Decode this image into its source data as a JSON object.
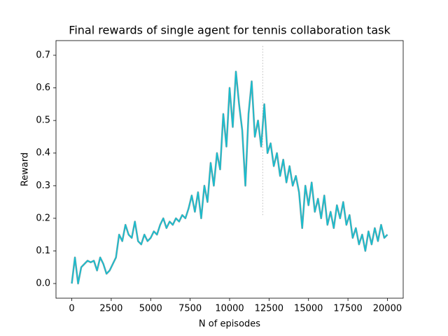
{
  "chart_data": {
    "type": "line",
    "title": "Final rewards of single agent for tennis collaboration task",
    "x_label": "N of episodes",
    "y_label": "Reward",
    "x": [
      0,
      200,
      400,
      600,
      800,
      1000,
      1200,
      1400,
      1600,
      1800,
      2000,
      2200,
      2400,
      2600,
      2800,
      3000,
      3200,
      3400,
      3600,
      3800,
      4000,
      4200,
      4400,
      4600,
      4800,
      5000,
      5200,
      5400,
      5600,
      5800,
      6000,
      6200,
      6400,
      6600,
      6800,
      7000,
      7200,
      7400,
      7600,
      7800,
      8000,
      8200,
      8400,
      8600,
      8800,
      9000,
      9200,
      9400,
      9600,
      9800,
      10000,
      10200,
      10400,
      10600,
      10800,
      11000,
      11200,
      11400,
      11600,
      11800,
      12000,
      12200,
      12400,
      12600,
      12800,
      13000,
      13200,
      13400,
      13600,
      13800,
      14000,
      14200,
      14400,
      14600,
      14800,
      15000,
      15200,
      15400,
      15600,
      15800,
      16000,
      16200,
      16400,
      16600,
      16800,
      17000,
      17200,
      17400,
      17600,
      17800,
      18000,
      18200,
      18400,
      18600,
      18800,
      19000,
      19200,
      19400,
      19600,
      19800,
      20000
    ],
    "series": [
      {
        "color": "#17becf",
        "values": [
          0.0,
          0.08,
          0.0,
          0.05,
          0.06,
          0.07,
          0.065,
          0.07,
          0.04,
          0.08,
          0.06,
          0.03,
          0.04,
          0.06,
          0.08,
          0.15,
          0.13,
          0.18,
          0.15,
          0.14,
          0.19,
          0.13,
          0.12,
          0.15,
          0.13,
          0.14,
          0.16,
          0.15,
          0.18,
          0.2,
          0.17,
          0.19,
          0.18,
          0.2,
          0.19,
          0.21,
          0.2,
          0.23,
          0.27,
          0.22,
          0.28,
          0.2,
          0.3,
          0.25,
          0.37,
          0.3,
          0.4,
          0.35,
          0.52,
          0.42,
          0.6,
          0.48,
          0.65,
          0.55,
          0.47,
          0.3,
          0.52,
          0.62,
          0.45,
          0.5,
          0.42,
          0.55,
          0.4,
          0.43,
          0.36,
          0.4,
          0.33,
          0.38,
          0.31,
          0.36,
          0.3,
          0.33,
          0.28,
          0.17,
          0.3,
          0.24,
          0.31,
          0.22,
          0.26,
          0.2,
          0.27,
          0.18,
          0.22,
          0.17,
          0.24,
          0.2,
          0.25,
          0.18,
          0.21,
          0.14,
          0.17,
          0.12,
          0.15,
          0.1,
          0.16,
          0.12,
          0.17,
          0.13,
          0.18,
          0.14,
          0.15
        ]
      }
    ],
    "vline": {
      "x": 12100,
      "y": [
        0.21,
        0.73
      ],
      "color": "#bbbbbb"
    },
    "xlim": [
      -1000,
      21000
    ],
    "ylim": [
      -0.045,
      0.745
    ],
    "xticks": [
      0,
      2500,
      5000,
      7500,
      10000,
      12500,
      15000,
      17500,
      20000
    ],
    "yticks": [
      {
        "value": 0,
        "label": "0.0"
      },
      0.1,
      0.2,
      0.3,
      0.4,
      0.5,
      0.6,
      0.7
    ]
  }
}
